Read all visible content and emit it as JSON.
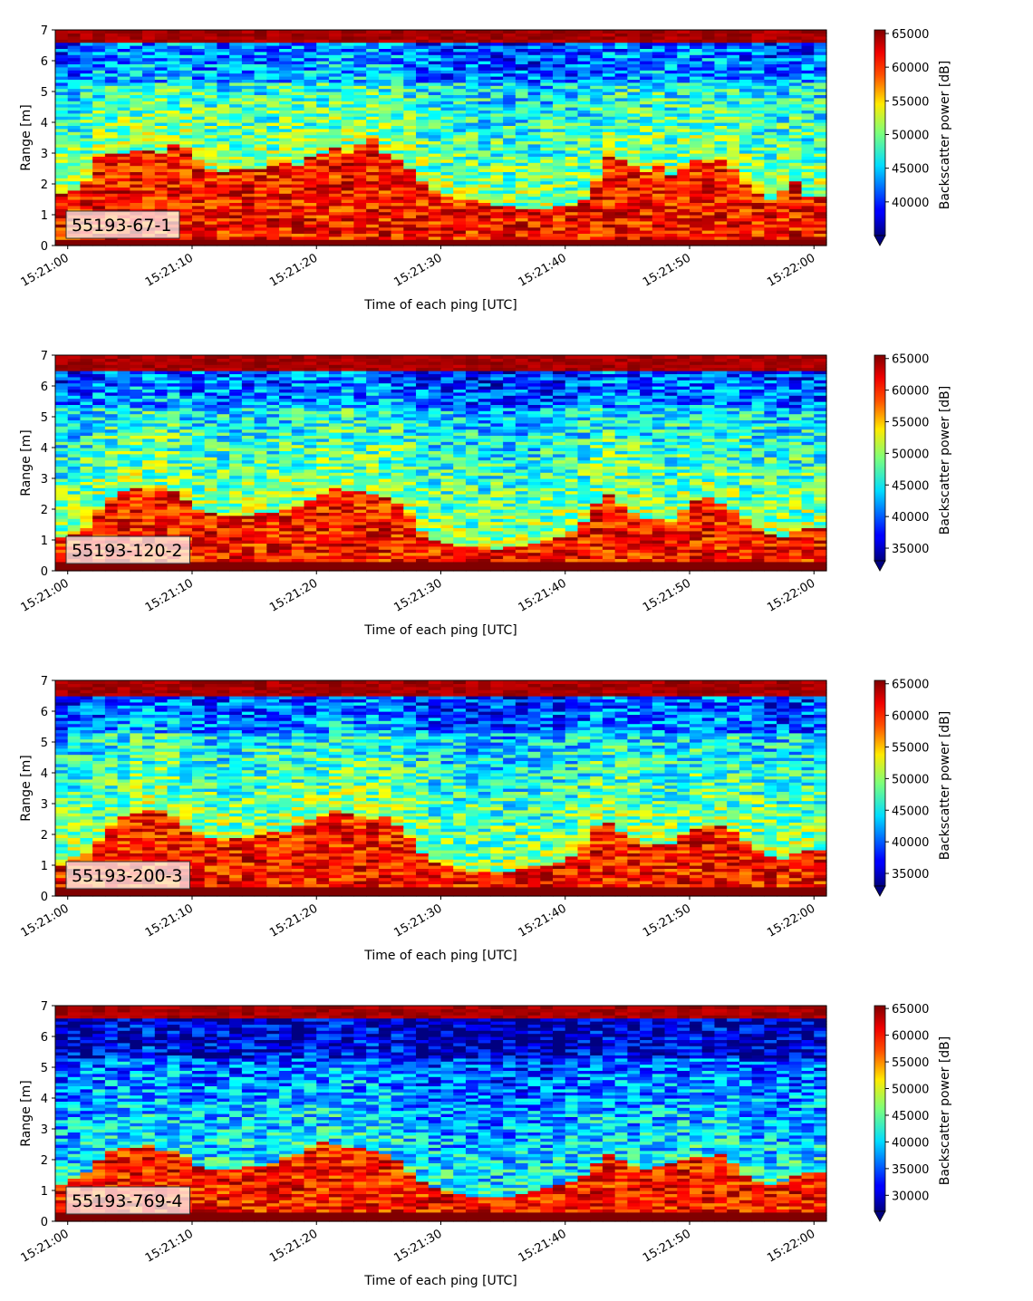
{
  "chart_data": [
    {
      "type": "heatmap",
      "label": "55193-67-1",
      "xlabel": "Time of each ping [UTC]",
      "ylabel": "Range [m]",
      "x_ticks": [
        "15:21:00",
        "15:21:10",
        "15:21:20",
        "15:21:30",
        "15:21:40",
        "15:21:50",
        "15:22:00"
      ],
      "y_ticks": [
        0,
        1,
        2,
        3,
        4,
        5,
        6,
        7
      ],
      "xlim_seconds": [
        -1,
        61
      ],
      "ylim": [
        0,
        7
      ],
      "colorbar": {
        "label": "Backscatter power [dB]",
        "ticks": [
          40000,
          45000,
          50000,
          55000,
          60000,
          65000
        ],
        "min": 35000,
        "max": 65535,
        "colormap": "jet"
      },
      "layers": {
        "surface_m": 0.25,
        "top_band_m": 6.6,
        "high_top_m": [
          1.7,
          1.8,
          2.1,
          2.9,
          3.0,
          3.0,
          3.1,
          3.1,
          3.0,
          3.3,
          3.2,
          2.8,
          2.5,
          2.4,
          2.5,
          2.5,
          2.5,
          2.6,
          2.7,
          2.6,
          2.9,
          3.0,
          3.2,
          3.0,
          3.3,
          3.5,
          3.0,
          2.8,
          2.5,
          2.1,
          1.8,
          1.6,
          1.5,
          1.5,
          1.4,
          1.3,
          1.3,
          1.2,
          1.2,
          1.2,
          1.3,
          1.3,
          1.5,
          2.1,
          2.9,
          2.8,
          2.6,
          2.4,
          2.6,
          2.3,
          2.5,
          2.8,
          2.7,
          2.8,
          2.5,
          2.0,
          1.7,
          1.5,
          1.8,
          2.1,
          1.6
        ]
      }
    },
    {
      "type": "heatmap",
      "label": "55193-120-2",
      "xlabel": "Time of each ping [UTC]",
      "ylabel": "Range [m]",
      "x_ticks": [
        "15:21:00",
        "15:21:10",
        "15:21:20",
        "15:21:30",
        "15:21:40",
        "15:21:50",
        "15:22:00"
      ],
      "y_ticks": [
        0,
        1,
        2,
        3,
        4,
        5,
        6,
        7
      ],
      "xlim_seconds": [
        -1,
        61
      ],
      "ylim": [
        0,
        7
      ],
      "colorbar": {
        "label": "Backscatter power [dB]",
        "ticks": [
          35000,
          40000,
          45000,
          50000,
          55000,
          60000,
          65000
        ],
        "min": 33000,
        "max": 65535,
        "colormap": "jet"
      },
      "layers": {
        "surface_m": 0.3,
        "top_band_m": 6.5,
        "high_top_m": [
          1.1,
          1.2,
          1.4,
          2.0,
          2.4,
          2.6,
          2.7,
          2.6,
          2.7,
          2.6,
          2.3,
          2.0,
          1.9,
          1.8,
          1.8,
          1.8,
          1.9,
          1.9,
          2.0,
          2.1,
          2.3,
          2.5,
          2.7,
          2.6,
          2.6,
          2.5,
          2.4,
          2.2,
          1.8,
          1.3,
          1.0,
          0.9,
          0.8,
          0.8,
          0.8,
          0.7,
          0.8,
          0.8,
          0.9,
          1.0,
          1.1,
          1.3,
          1.6,
          2.2,
          2.5,
          2.1,
          1.9,
          1.7,
          1.7,
          1.6,
          2.0,
          2.3,
          2.4,
          2.2,
          2.0,
          1.7,
          1.4,
          1.2,
          1.1,
          1.3,
          1.4
        ]
      }
    },
    {
      "type": "heatmap",
      "label": "55193-200-3",
      "xlabel": "Time of each ping [UTC]",
      "ylabel": "Range [m]",
      "x_ticks": [
        "15:21:00",
        "15:21:10",
        "15:21:20",
        "15:21:30",
        "15:21:40",
        "15:21:50",
        "15:22:00"
      ],
      "y_ticks": [
        0,
        1,
        2,
        3,
        4,
        5,
        6,
        7
      ],
      "xlim_seconds": [
        -1,
        61
      ],
      "ylim": [
        0,
        7
      ],
      "colorbar": {
        "label": "Backscatter power [dB]",
        "ticks": [
          35000,
          40000,
          45000,
          50000,
          55000,
          60000,
          65000
        ],
        "min": 33000,
        "max": 65535,
        "colormap": "jet"
      },
      "layers": {
        "surface_m": 0.35,
        "top_band_m": 6.5,
        "high_top_m": [
          1.0,
          1.2,
          1.4,
          1.8,
          2.3,
          2.6,
          2.7,
          2.8,
          2.8,
          2.6,
          2.3,
          2.0,
          1.9,
          1.8,
          1.9,
          1.9,
          2.0,
          2.1,
          2.1,
          2.3,
          2.5,
          2.6,
          2.8,
          2.7,
          2.6,
          2.5,
          2.6,
          2.3,
          1.9,
          1.4,
          1.1,
          1.0,
          0.9,
          0.8,
          0.8,
          0.8,
          0.8,
          0.9,
          1.0,
          1.0,
          1.1,
          1.3,
          1.7,
          2.3,
          2.4,
          2.1,
          1.9,
          1.7,
          1.7,
          1.7,
          2.0,
          2.2,
          2.3,
          2.3,
          2.1,
          1.8,
          1.5,
          1.3,
          1.2,
          1.4,
          1.5
        ]
      }
    },
    {
      "type": "heatmap",
      "label": "55193-769-4",
      "xlabel": "Time of each ping [UTC]",
      "ylabel": "Range [m]",
      "x_ticks": [
        "15:21:00",
        "15:21:10",
        "15:21:20",
        "15:21:30",
        "15:21:40",
        "15:21:50",
        "15:22:00"
      ],
      "y_ticks": [
        0,
        1,
        2,
        3,
        4,
        5,
        6,
        7
      ],
      "xlim_seconds": [
        -1,
        61
      ],
      "ylim": [
        0,
        7
      ],
      "colorbar": {
        "label": "Backscatter power [dB]",
        "ticks": [
          30000,
          35000,
          40000,
          45000,
          50000,
          55000,
          60000,
          65000
        ],
        "min": 27000,
        "max": 65535,
        "colormap": "jet"
      },
      "layers": {
        "surface_m": 0.3,
        "top_band_m": 6.6,
        "high_top_m": [
          1.2,
          1.4,
          1.6,
          2.0,
          2.3,
          2.4,
          2.4,
          2.5,
          2.3,
          2.3,
          2.1,
          1.8,
          1.7,
          1.7,
          1.7,
          1.8,
          1.8,
          1.9,
          2.1,
          2.2,
          2.4,
          2.6,
          2.5,
          2.4,
          2.4,
          2.3,
          2.2,
          2.0,
          1.6,
          1.3,
          1.1,
          1.0,
          0.9,
          0.8,
          0.8,
          0.8,
          0.8,
          0.9,
          1.0,
          1.1,
          1.2,
          1.3,
          1.5,
          1.9,
          2.2,
          2.0,
          1.8,
          1.7,
          1.8,
          1.9,
          2.0,
          2.1,
          2.1,
          2.2,
          1.9,
          1.5,
          1.3,
          1.2,
          1.3,
          1.5,
          1.6
        ]
      }
    }
  ]
}
